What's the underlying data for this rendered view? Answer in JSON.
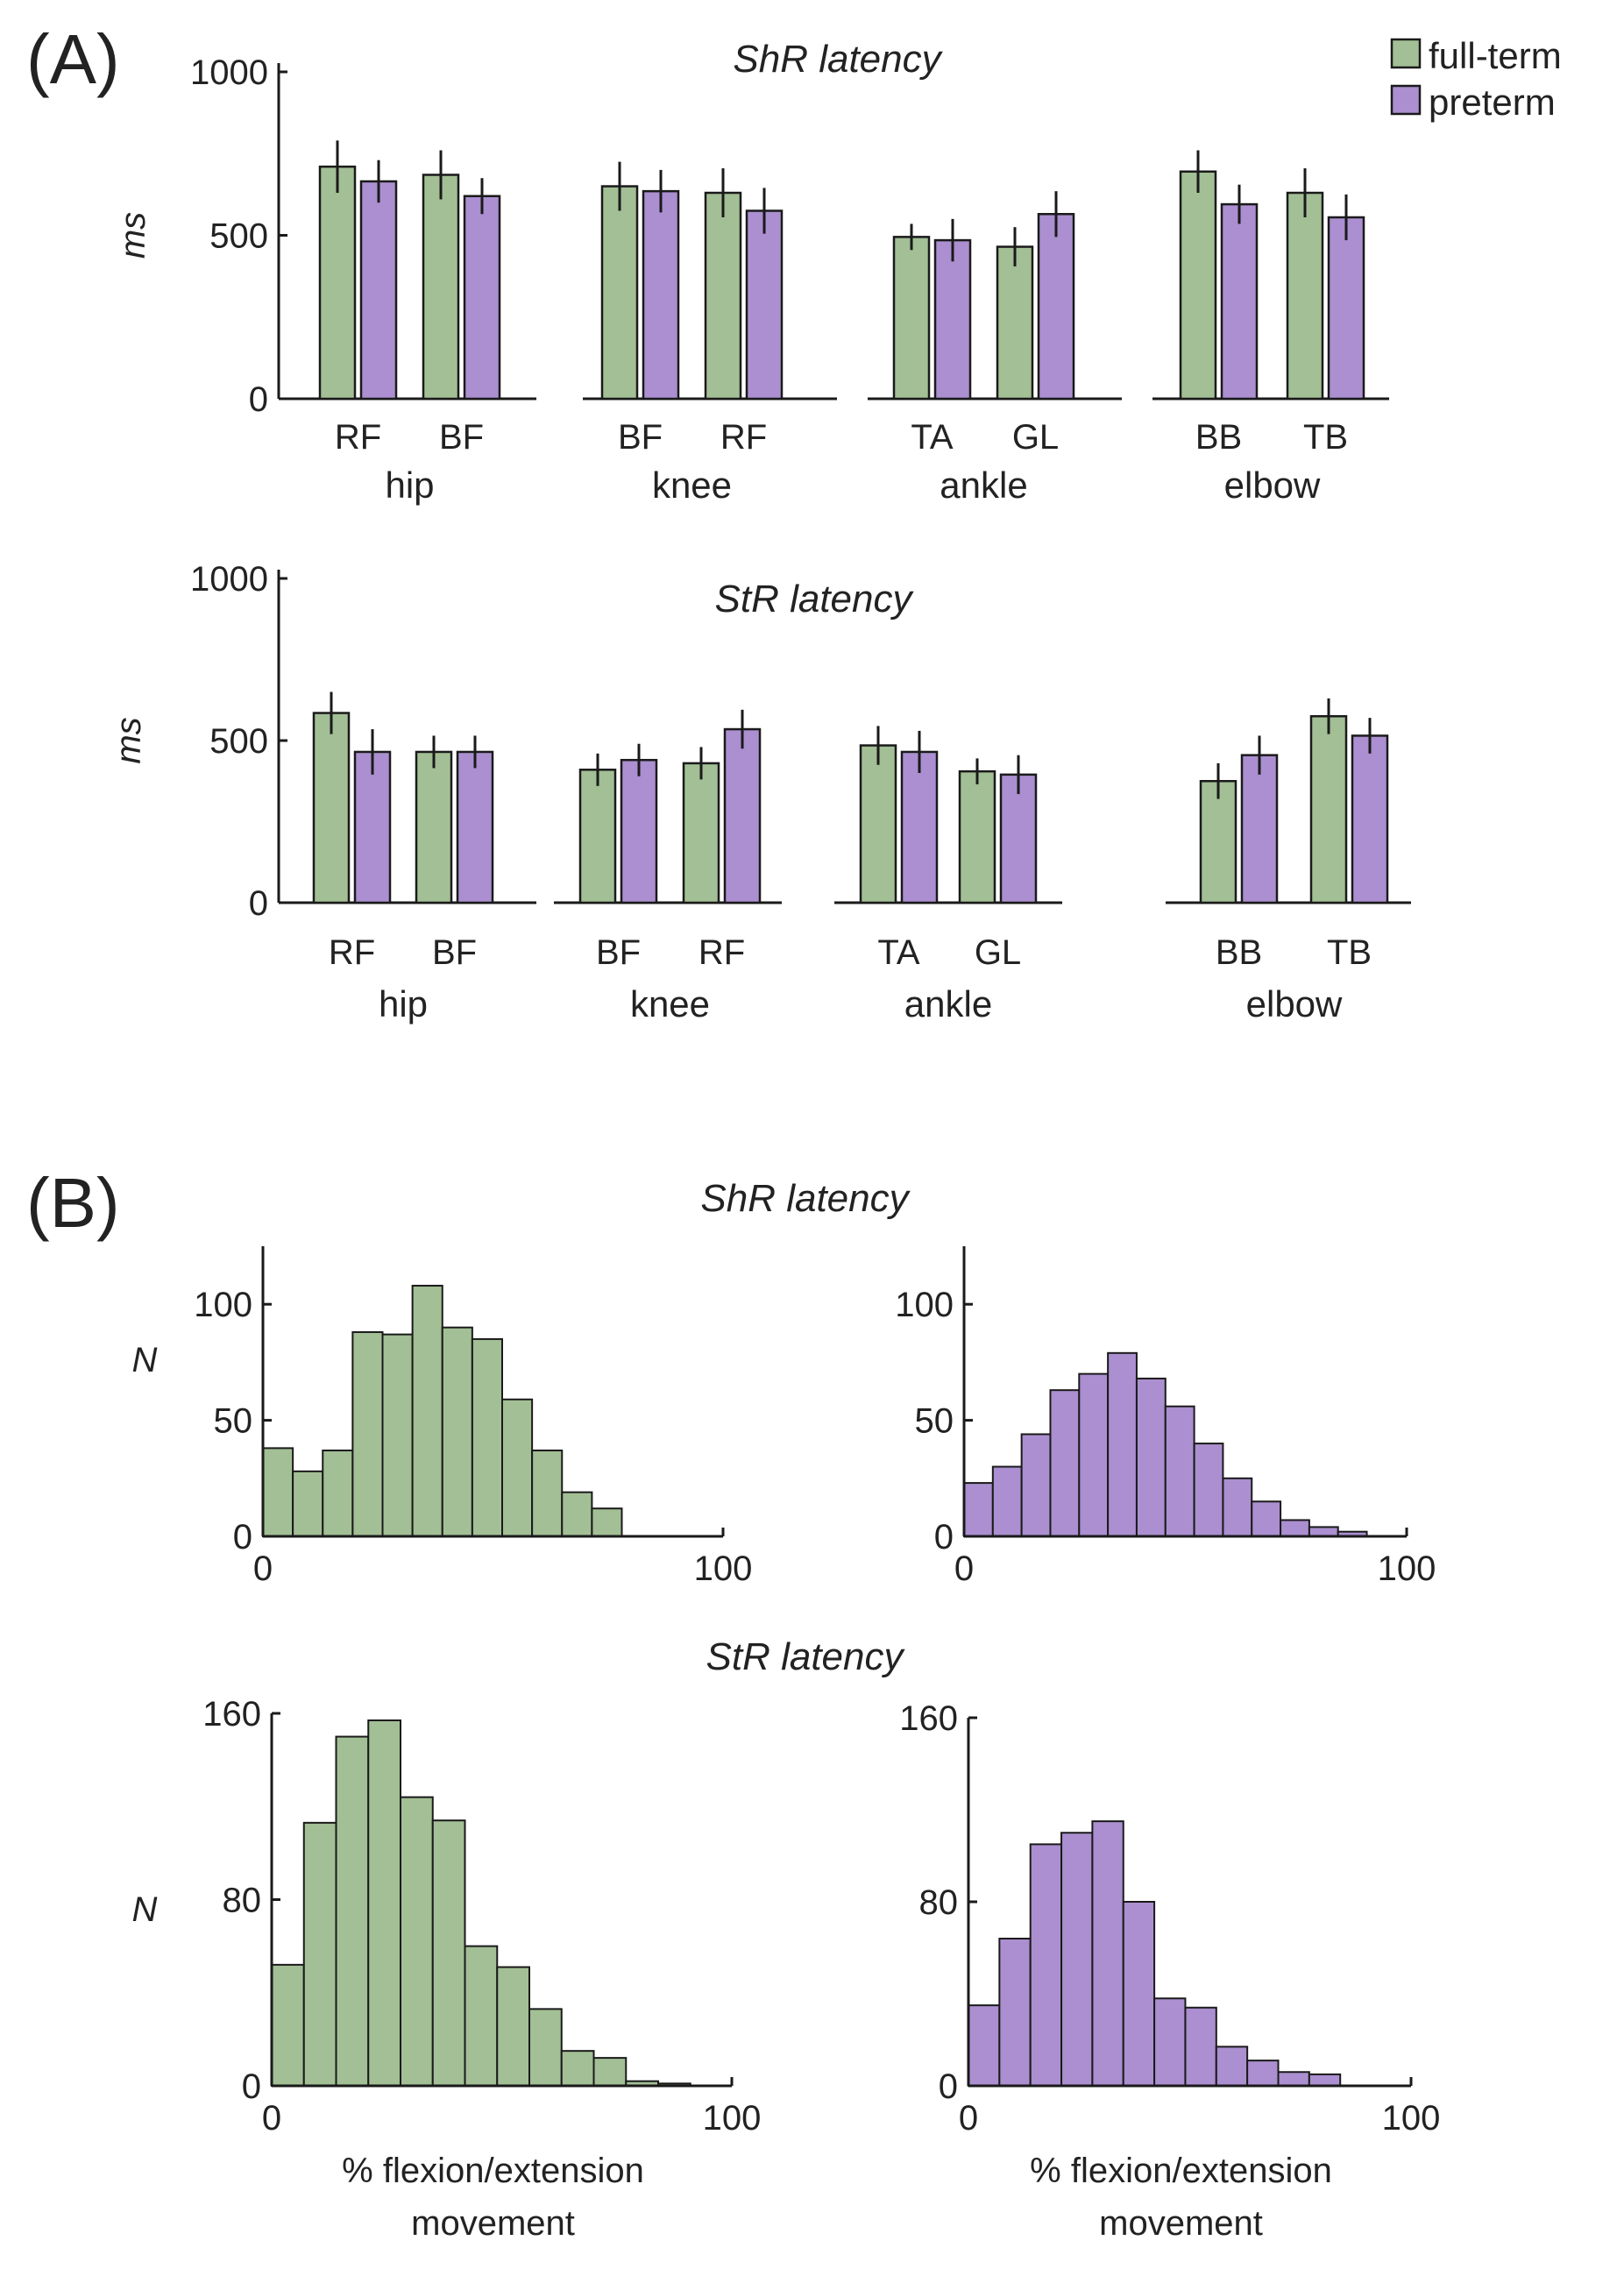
{
  "colors": {
    "full_term": "#a3bf95",
    "preterm": "#ab8fd0"
  },
  "labels": {
    "panel_a": "(A)",
    "panel_b": "(B)",
    "legend_full_term": "full-term",
    "legend_preterm": "preterm",
    "ms": "ms",
    "n": "N"
  },
  "chart_data": [
    {
      "id": "shr_latency_bars",
      "type": "bar",
      "title": "ShR latency",
      "ylabel": "ms",
      "ylim": [
        0,
        1000
      ],
      "yticks": [
        "0",
        "500",
        "1000"
      ],
      "legend": [
        "full-term",
        "preterm"
      ],
      "groups": [
        {
          "name": "hip",
          "muscles": [
            {
              "name": "RF",
              "full_term": 710,
              "full_term_err": 80,
              "preterm": 665,
              "preterm_err": 65
            },
            {
              "name": "BF",
              "full_term": 685,
              "full_term_err": 75,
              "preterm": 620,
              "preterm_err": 55
            }
          ]
        },
        {
          "name": "knee",
          "muscles": [
            {
              "name": "BF",
              "full_term": 650,
              "full_term_err": 75,
              "preterm": 635,
              "preterm_err": 65
            },
            {
              "name": "RF",
              "full_term": 630,
              "full_term_err": 75,
              "preterm": 575,
              "preterm_err": 70
            }
          ]
        },
        {
          "name": "ankle",
          "muscles": [
            {
              "name": "TA",
              "full_term": 495,
              "full_term_err": 40,
              "preterm": 485,
              "preterm_err": 65
            },
            {
              "name": "GL",
              "full_term": 465,
              "full_term_err": 60,
              "preterm": 565,
              "preterm_err": 70
            }
          ]
        },
        {
          "name": "elbow",
          "muscles": [
            {
              "name": "BB",
              "full_term": 695,
              "full_term_err": 65,
              "preterm": 595,
              "preterm_err": 60
            },
            {
              "name": "TB",
              "full_term": 630,
              "full_term_err": 75,
              "preterm": 555,
              "preterm_err": 70
            }
          ]
        }
      ]
    },
    {
      "id": "str_latency_bars",
      "type": "bar",
      "title": "StR latency",
      "ylabel": "ms",
      "ylim": [
        0,
        1000
      ],
      "yticks": [
        "0",
        "500",
        "1000"
      ],
      "legend": [
        "full-term",
        "preterm"
      ],
      "groups": [
        {
          "name": "hip",
          "muscles": [
            {
              "name": "RF",
              "full_term": 585,
              "full_term_err": 65,
              "preterm": 465,
              "preterm_err": 70
            },
            {
              "name": "BF",
              "full_term": 465,
              "full_term_err": 50,
              "preterm": 465,
              "preterm_err": 50
            }
          ]
        },
        {
          "name": "knee",
          "muscles": [
            {
              "name": "BF",
              "full_term": 410,
              "full_term_err": 50,
              "preterm": 440,
              "preterm_err": 50
            },
            {
              "name": "RF",
              "full_term": 430,
              "full_term_err": 50,
              "preterm": 535,
              "preterm_err": 60
            }
          ]
        },
        {
          "name": "ankle",
          "muscles": [
            {
              "name": "TA",
              "full_term": 485,
              "full_term_err": 60,
              "preterm": 465,
              "preterm_err": 65
            },
            {
              "name": "GL",
              "full_term": 405,
              "full_term_err": 40,
              "preterm": 395,
              "preterm_err": 60
            }
          ]
        },
        {
          "name": "elbow",
          "muscles": [
            {
              "name": "BB",
              "full_term": 375,
              "full_term_err": 55,
              "preterm": 455,
              "preterm_err": 60
            },
            {
              "name": "TB",
              "full_term": 575,
              "full_term_err": 55,
              "preterm": 515,
              "preterm_err": 55
            }
          ]
        }
      ]
    },
    {
      "id": "shr_hist_full_term",
      "type": "histogram",
      "title": "ShR latency",
      "series": "full-term",
      "ylabel": "N",
      "xlabel": "",
      "xlim": [
        0,
        100
      ],
      "ylim": [
        0,
        125
      ],
      "xticks": [
        "0",
        "100"
      ],
      "yticks": [
        "0",
        "50",
        "100"
      ],
      "bin_width": 6.5,
      "values": [
        38,
        28,
        37,
        88,
        87,
        108,
        90,
        85,
        59,
        37,
        19,
        12
      ]
    },
    {
      "id": "shr_hist_preterm",
      "type": "histogram",
      "title": "ShR latency",
      "series": "preterm",
      "ylabel": "",
      "xlabel": "",
      "xlim": [
        0,
        100
      ],
      "ylim": [
        0,
        125
      ],
      "xticks": [
        "0",
        "100"
      ],
      "yticks": [
        "0",
        "50",
        "100"
      ],
      "bin_width": 6.5,
      "values": [
        23,
        30,
        44,
        63,
        70,
        79,
        68,
        56,
        40,
        25,
        15,
        7,
        4,
        2
      ]
    },
    {
      "id": "str_hist_full_term",
      "type": "histogram",
      "title": "StR latency",
      "series": "full-term",
      "ylabel": "N",
      "xlabel": "% flexion/extension\nmovement",
      "xlim": [
        0,
        100
      ],
      "ylim": [
        0,
        160
      ],
      "xticks": [
        "0",
        "100"
      ],
      "yticks": [
        "0",
        "80",
        "160"
      ],
      "bin_width": 7,
      "values": [
        52,
        113,
        150,
        157,
        124,
        114,
        60,
        51,
        33,
        15,
        12,
        2,
        1
      ]
    },
    {
      "id": "str_hist_preterm",
      "type": "histogram",
      "title": "",
      "series": "preterm",
      "ylabel": "",
      "xlabel": "% flexion/extension\nmovement",
      "xlim": [
        0,
        100
      ],
      "ylim": [
        0,
        160
      ],
      "xticks": [
        "0",
        "100"
      ],
      "yticks": [
        "0",
        "80",
        "160"
      ],
      "bin_width": 7,
      "values": [
        35,
        64,
        105,
        110,
        115,
        80,
        38,
        34,
        17,
        11,
        6,
        5
      ]
    }
  ]
}
